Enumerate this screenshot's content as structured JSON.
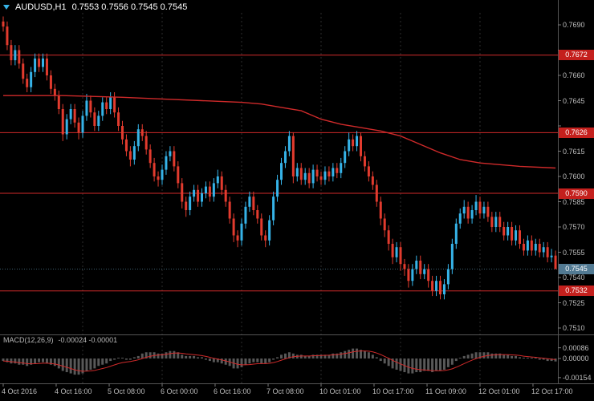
{
  "header": {
    "symbol_period": "AUDUSD,H1",
    "ohlc": "0.7553 0.7556 0.7545 0.7545"
  },
  "indicator": {
    "name": "MACD(12,26,9)",
    "values": "-0.00024 -0.00001"
  },
  "colors": {
    "background": "#000000",
    "bull": "#36b3e8",
    "bear": "#e23b2e",
    "level_line": "#cf2a2a",
    "ma_line": "#cf2a2a",
    "badge_bg": "#c4201d",
    "current_badge_bg": "#527a93",
    "current_line": "#3f6173",
    "histogram": "#585858",
    "signal": "#cf2a2a",
    "axis_text": "#bdbdbd",
    "separator": "#555555",
    "grid": "#2e2e2e",
    "tick": "#777777"
  },
  "price_axis": {
    "ticks": [
      "0.7690",
      "0.7675",
      "0.7660",
      "0.7645",
      "0.7630",
      "0.7615",
      "0.7600",
      "0.7585",
      "0.7570",
      "0.7555",
      "0.7540",
      "0.7525",
      "0.7510"
    ],
    "levels": [
      {
        "label": "0.7672",
        "price": 0.7672
      },
      {
        "label": "0.7626",
        "price": 0.7626
      },
      {
        "label": "0.7590",
        "price": 0.759
      },
      {
        "label": "0.7532",
        "price": 0.7532
      }
    ],
    "current": {
      "label": "0.7545",
      "price": 0.7545
    }
  },
  "macd_axis": {
    "ticks": [
      {
        "label": "0.00086",
        "value": 0.00086
      },
      {
        "label": "0.00000",
        "value": 0
      },
      {
        "label": "-0.00154",
        "value": -0.00154
      }
    ]
  },
  "time_axis": {
    "labels": [
      {
        "text": "4 Oct 2016",
        "bar": 0
      },
      {
        "text": "4 Oct 16:00",
        "bar": 13.33
      },
      {
        "text": "5 Oct 08:00",
        "bar": 26.67
      },
      {
        "text": "6 Oct 00:00",
        "bar": 40
      },
      {
        "text": "6 Oct 16:00",
        "bar": 53.33
      },
      {
        "text": "7 Oct 08:00",
        "bar": 66.67
      },
      {
        "text": "10 Oct 01:00",
        "bar": 80
      },
      {
        "text": "10 Oct 17:00",
        "bar": 93.33
      },
      {
        "text": "11 Oct 09:00",
        "bar": 106.67
      },
      {
        "text": "12 Oct 01:00",
        "bar": 120
      },
      {
        "text": "12 Oct 17:00",
        "bar": 133.33
      }
    ],
    "day_separator_bars": [
      20,
      40,
      60,
      80,
      100,
      120
    ]
  },
  "chart_data": [
    {
      "type": "candlestick",
      "symbol": "AUDUSD",
      "timeframe": "H1",
      "ylim": [
        0.7505,
        0.77
      ],
      "levels": [
        0.7672,
        0.7626,
        0.759,
        0.7532
      ],
      "current_price": 0.7545,
      "ma_points": [
        [
          0,
          0.7648
        ],
        [
          15,
          0.7648
        ],
        [
          30,
          0.7647
        ],
        [
          40,
          0.7646
        ],
        [
          50,
          0.7645
        ],
        [
          60,
          0.7644
        ],
        [
          65,
          0.7643
        ],
        [
          70,
          0.7641
        ],
        [
          75,
          0.7639
        ],
        [
          80,
          0.7634
        ],
        [
          85,
          0.7631
        ],
        [
          90,
          0.7629
        ],
        [
          95,
          0.7627
        ],
        [
          100,
          0.7624
        ],
        [
          105,
          0.7619
        ],
        [
          110,
          0.7614
        ],
        [
          115,
          0.761
        ],
        [
          120,
          0.7608
        ],
        [
          125,
          0.7607
        ],
        [
          130,
          0.7606
        ],
        [
          139,
          0.7605
        ]
      ],
      "candles": [
        [
          0.7692,
          0.7695,
          0.7686,
          0.7689
        ],
        [
          0.7689,
          0.7692,
          0.7675,
          0.7678
        ],
        [
          0.7678,
          0.7681,
          0.7666,
          0.7669
        ],
        [
          0.7669,
          0.7678,
          0.7666,
          0.7675
        ],
        [
          0.7675,
          0.7678,
          0.7664,
          0.7667
        ],
        [
          0.7667,
          0.767,
          0.7655,
          0.7658
        ],
        [
          0.7658,
          0.7661,
          0.765,
          0.7653
        ],
        [
          0.7653,
          0.7665,
          0.765,
          0.7662
        ],
        [
          0.7662,
          0.7673,
          0.7659,
          0.767
        ],
        [
          0.767,
          0.7673,
          0.7662,
          0.7665
        ],
        [
          0.7665,
          0.7673,
          0.7662,
          0.767
        ],
        [
          0.767,
          0.7673,
          0.7657,
          0.766
        ],
        [
          0.766,
          0.7663,
          0.7649,
          0.7652
        ],
        [
          0.7652,
          0.7655,
          0.7645,
          0.7648
        ],
        [
          0.7648,
          0.7651,
          0.7637,
          0.764
        ],
        [
          0.764,
          0.7643,
          0.7621,
          0.7625
        ],
        [
          0.7625,
          0.7637,
          0.7622,
          0.7634
        ],
        [
          0.7634,
          0.7643,
          0.7631,
          0.764
        ],
        [
          0.764,
          0.7643,
          0.7629,
          0.7632
        ],
        [
          0.7632,
          0.7635,
          0.7622,
          0.7626
        ],
        [
          0.7626,
          0.7639,
          0.7623,
          0.7636
        ],
        [
          0.7636,
          0.7649,
          0.7633,
          0.7645
        ],
        [
          0.7645,
          0.7648,
          0.7635,
          0.7638
        ],
        [
          0.7638,
          0.7641,
          0.7627,
          0.763
        ],
        [
          0.763,
          0.7639,
          0.7627,
          0.7636
        ],
        [
          0.7636,
          0.7647,
          0.7633,
          0.7644
        ],
        [
          0.7644,
          0.7647,
          0.7637,
          0.764
        ],
        [
          0.764,
          0.765,
          0.7637,
          0.7647
        ],
        [
          0.7647,
          0.765,
          0.7635,
          0.7638
        ],
        [
          0.7638,
          0.7641,
          0.7627,
          0.763
        ],
        [
          0.763,
          0.7633,
          0.7619,
          0.7622
        ],
        [
          0.7622,
          0.7625,
          0.7612,
          0.7615
        ],
        [
          0.7615,
          0.7618,
          0.7606,
          0.761
        ],
        [
          0.761,
          0.7621,
          0.7607,
          0.7618
        ],
        [
          0.7618,
          0.7631,
          0.7615,
          0.7628
        ],
        [
          0.7628,
          0.7631,
          0.7621,
          0.7624
        ],
        [
          0.7624,
          0.7627,
          0.7613,
          0.7616
        ],
        [
          0.7616,
          0.7619,
          0.7605,
          0.7608
        ],
        [
          0.7608,
          0.7611,
          0.7597,
          0.76
        ],
        [
          0.76,
          0.7603,
          0.7594,
          0.7598
        ],
        [
          0.7598,
          0.7607,
          0.7595,
          0.7604
        ],
        [
          0.7604,
          0.7615,
          0.7601,
          0.7612
        ],
        [
          0.7612,
          0.7618,
          0.7609,
          0.7615
        ],
        [
          0.7615,
          0.7618,
          0.7603,
          0.7606
        ],
        [
          0.7606,
          0.7609,
          0.7593,
          0.7596
        ],
        [
          0.7596,
          0.7599,
          0.7581,
          0.7585
        ],
        [
          0.7585,
          0.7588,
          0.7576,
          0.758
        ],
        [
          0.758,
          0.7591,
          0.7577,
          0.7588
        ],
        [
          0.7588,
          0.7595,
          0.7585,
          0.7592
        ],
        [
          0.7592,
          0.7595,
          0.7582,
          0.7585
        ],
        [
          0.7585,
          0.7593,
          0.7582,
          0.759
        ],
        [
          0.759,
          0.7597,
          0.7587,
          0.7594
        ],
        [
          0.7594,
          0.7597,
          0.7585,
          0.7588
        ],
        [
          0.7588,
          0.7599,
          0.7585,
          0.7596
        ],
        [
          0.7596,
          0.7604,
          0.7593,
          0.76
        ],
        [
          0.76,
          0.7603,
          0.7589,
          0.7592
        ],
        [
          0.7592,
          0.7595,
          0.7582,
          0.7585
        ],
        [
          0.7585,
          0.7588,
          0.7572,
          0.7575
        ],
        [
          0.7575,
          0.7578,
          0.7561,
          0.7565
        ],
        [
          0.7565,
          0.7568,
          0.7558,
          0.7562
        ],
        [
          0.7562,
          0.7575,
          0.7559,
          0.7572
        ],
        [
          0.7572,
          0.7585,
          0.7569,
          0.7582
        ],
        [
          0.7582,
          0.7591,
          0.7579,
          0.7588
        ],
        [
          0.7588,
          0.7591,
          0.7577,
          0.758
        ],
        [
          0.758,
          0.7583,
          0.7572,
          0.7575
        ],
        [
          0.7575,
          0.7578,
          0.7562,
          0.7565
        ],
        [
          0.7565,
          0.7568,
          0.7558,
          0.7562
        ],
        [
          0.7562,
          0.7577,
          0.7559,
          0.7574
        ],
        [
          0.7574,
          0.7591,
          0.7571,
          0.7588
        ],
        [
          0.7588,
          0.7601,
          0.7585,
          0.7598
        ],
        [
          0.7598,
          0.7611,
          0.7595,
          0.7608
        ],
        [
          0.7608,
          0.7618,
          0.7605,
          0.7615
        ],
        [
          0.7615,
          0.7627,
          0.7612,
          0.7624
        ],
        [
          0.7624,
          0.7626,
          0.7596,
          0.76
        ],
        [
          0.76,
          0.7608,
          0.7597,
          0.7605
        ],
        [
          0.7605,
          0.7608,
          0.7595,
          0.7598
        ],
        [
          0.7598,
          0.7605,
          0.7595,
          0.7602
        ],
        [
          0.7602,
          0.7605,
          0.7593,
          0.7596
        ],
        [
          0.7596,
          0.7607,
          0.7593,
          0.7604
        ],
        [
          0.7604,
          0.7607,
          0.7597,
          0.76
        ],
        [
          0.76,
          0.7603,
          0.7595,
          0.7598
        ],
        [
          0.7598,
          0.7606,
          0.7595,
          0.7603
        ],
        [
          0.7603,
          0.7606,
          0.7597,
          0.76
        ],
        [
          0.76,
          0.7608,
          0.7597,
          0.7605
        ],
        [
          0.7605,
          0.7608,
          0.7599,
          0.7602
        ],
        [
          0.7602,
          0.7611,
          0.7599,
          0.7608
        ],
        [
          0.7608,
          0.7618,
          0.7605,
          0.7615
        ],
        [
          0.7615,
          0.7626,
          0.7612,
          0.7622
        ],
        [
          0.7622,
          0.7625,
          0.7615,
          0.7618
        ],
        [
          0.7618,
          0.7627,
          0.7615,
          0.7624
        ],
        [
          0.7624,
          0.7626,
          0.7609,
          0.7612
        ],
        [
          0.7612,
          0.7615,
          0.7603,
          0.7606
        ],
        [
          0.7606,
          0.7609,
          0.7597,
          0.76
        ],
        [
          0.76,
          0.7603,
          0.7592,
          0.7595
        ],
        [
          0.7595,
          0.7598,
          0.7582,
          0.7585
        ],
        [
          0.7585,
          0.7588,
          0.7571,
          0.7575
        ],
        [
          0.7575,
          0.7578,
          0.7564,
          0.7568
        ],
        [
          0.7568,
          0.7571,
          0.7556,
          0.756
        ],
        [
          0.756,
          0.7563,
          0.7548,
          0.7552
        ],
        [
          0.7552,
          0.7561,
          0.7549,
          0.7558
        ],
        [
          0.7558,
          0.7561,
          0.7544,
          0.7548
        ],
        [
          0.7548,
          0.7551,
          0.7541,
          0.7545
        ],
        [
          0.7545,
          0.7548,
          0.7534,
          0.7538
        ],
        [
          0.7538,
          0.7548,
          0.7535,
          0.7545
        ],
        [
          0.7545,
          0.7553,
          0.7542,
          0.755
        ],
        [
          0.755,
          0.7553,
          0.7539,
          0.7542
        ],
        [
          0.7542,
          0.7548,
          0.7539,
          0.7545
        ],
        [
          0.7545,
          0.7548,
          0.7534,
          0.7538
        ],
        [
          0.7538,
          0.7541,
          0.7529,
          0.7532
        ],
        [
          0.7532,
          0.7541,
          0.7529,
          0.7538
        ],
        [
          0.7538,
          0.7541,
          0.7527,
          0.753
        ],
        [
          0.753,
          0.7539,
          0.7527,
          0.7536
        ],
        [
          0.7536,
          0.7548,
          0.7533,
          0.7545
        ],
        [
          0.7545,
          0.7563,
          0.7542,
          0.756
        ],
        [
          0.756,
          0.7575,
          0.7557,
          0.7572
        ],
        [
          0.7572,
          0.7581,
          0.7569,
          0.7578
        ],
        [
          0.7578,
          0.7586,
          0.7575,
          0.7582
        ],
        [
          0.7582,
          0.7585,
          0.7572,
          0.7575
        ],
        [
          0.7575,
          0.7583,
          0.7572,
          0.758
        ],
        [
          0.758,
          0.7589,
          0.7577,
          0.7585
        ],
        [
          0.7585,
          0.7588,
          0.7575,
          0.7578
        ],
        [
          0.7578,
          0.7585,
          0.7575,
          0.7582
        ],
        [
          0.7582,
          0.7585,
          0.7573,
          0.7576
        ],
        [
          0.7576,
          0.7579,
          0.7567,
          0.757
        ],
        [
          0.757,
          0.7579,
          0.7567,
          0.7576
        ],
        [
          0.7576,
          0.7579,
          0.7567,
          0.757
        ],
        [
          0.757,
          0.7573,
          0.7562,
          0.7565
        ],
        [
          0.7565,
          0.7573,
          0.7562,
          0.757
        ],
        [
          0.757,
          0.7573,
          0.7559,
          0.7562
        ],
        [
          0.7562,
          0.7571,
          0.7559,
          0.7568
        ],
        [
          0.7568,
          0.7571,
          0.7557,
          0.756
        ],
        [
          0.756,
          0.7563,
          0.7553,
          0.7556
        ],
        [
          0.7556,
          0.7565,
          0.7553,
          0.7562
        ],
        [
          0.7562,
          0.7565,
          0.7553,
          0.7556
        ],
        [
          0.7556,
          0.7563,
          0.7553,
          0.756
        ],
        [
          0.756,
          0.7563,
          0.7552,
          0.7555
        ],
        [
          0.7555,
          0.7561,
          0.7552,
          0.7558
        ],
        [
          0.7558,
          0.7561,
          0.7549,
          0.7552
        ],
        [
          0.7552,
          0.7557,
          0.7549,
          0.7553
        ],
        [
          0.7553,
          0.7556,
          0.7545,
          0.7545
        ]
      ]
    },
    {
      "type": "bar",
      "name": "MACD(12,26,9) histogram",
      "signal_period": 9,
      "last_main": -0.00024,
      "last_signal": -1e-05,
      "ylim": [
        -0.00165,
        0.00095
      ],
      "values": [
        -0.0002,
        -0.0003,
        -0.0004,
        -0.0004,
        -0.0005,
        -0.0005,
        -0.0006,
        -0.0005,
        -0.0004,
        -0.0003,
        -0.0003,
        -0.0004,
        -0.0005,
        -0.0006,
        -0.0008,
        -0.001,
        -0.0011,
        -0.0012,
        -0.0013,
        -0.0013,
        -0.0012,
        -0.001,
        -0.0009,
        -0.0008,
        -0.0006,
        -0.0005,
        -0.0004,
        -0.0002,
        -0.0001,
        0,
        0,
        -0.0001,
        -0.0001,
        0.0001,
        0.0002,
        0.0004,
        0.0005,
        0.0005,
        0.0005,
        0.0004,
        0.0004,
        0.0005,
        0.0006,
        0.0006,
        0.0005,
        0.0003,
        0.0002,
        0.0002,
        0.0002,
        0.0001,
        0.0001,
        -0.0001,
        -0.0002,
        -0.0003,
        -0.0003,
        -0.0004,
        -0.0005,
        -0.0006,
        -0.0008,
        -0.0008,
        -0.0007,
        -0.0005,
        -0.0004,
        -0.0003,
        -0.0003,
        -0.0004,
        -0.0004,
        -0.0003,
        -0.0001,
        0.0001,
        0.0003,
        0.0004,
        0.0005,
        0.0004,
        0.0003,
        0.0003,
        0.0002,
        0.0002,
        0.0003,
        0.0003,
        0.0003,
        0.0003,
        0.0003,
        0.0004,
        0.0004,
        0.0005,
        0.0006,
        0.0007,
        0.0008,
        0.0008,
        0.0007,
        0.0006,
        0.0005,
        0.0003,
        0.0001,
        -0.0002,
        -0.0004,
        -0.0006,
        -0.0008,
        -0.0009,
        -0.001,
        -0.0011,
        -0.0012,
        -0.0012,
        -0.0011,
        -0.0011,
        -0.001,
        -0.001,
        -0.0011,
        -0.001,
        -0.001,
        -0.0009,
        -0.0007,
        -0.0005,
        -0.0002,
        0,
        0.0002,
        0.0003,
        0.0004,
        0.0005,
        0.0005,
        0.0005,
        0.0005,
        0.0004,
        0.0004,
        0.0004,
        0.0003,
        0.0003,
        0.0002,
        0.0002,
        0.0001,
        0,
        0,
        0,
        0,
        -0.0001,
        -0.0001,
        -0.0002,
        -0.0002,
        -0.00024
      ]
    }
  ]
}
